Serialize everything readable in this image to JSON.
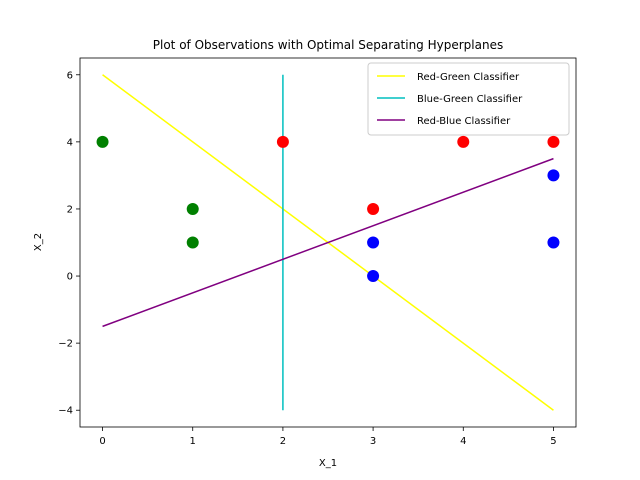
{
  "chart_data": {
    "type": "scatter",
    "title": "Plot of Observations with Optimal Separating Hyperplanes",
    "xlabel": "X_1",
    "ylabel": "X_2",
    "xlim": [
      -0.25,
      5.25
    ],
    "ylim": [
      -4.5,
      6.5
    ],
    "xticks": [
      0,
      1,
      2,
      3,
      4,
      5
    ],
    "yticks": [
      -4,
      -2,
      0,
      2,
      4,
      6
    ],
    "xtick_labels": [
      "0",
      "1",
      "2",
      "3",
      "4",
      "5"
    ],
    "ytick_labels": [
      "−4",
      "−2",
      "0",
      "2",
      "4",
      "6"
    ],
    "grid": false,
    "legend_position": "top-right",
    "points": [
      {
        "x": 0,
        "y": 4,
        "color": "#008000"
      },
      {
        "x": 1,
        "y": 2,
        "color": "#008000"
      },
      {
        "x": 1,
        "y": 1,
        "color": "#008000"
      },
      {
        "x": 2,
        "y": 4,
        "color": "#ff0000"
      },
      {
        "x": 3,
        "y": 2,
        "color": "#ff0000"
      },
      {
        "x": 4,
        "y": 4,
        "color": "#ff0000"
      },
      {
        "x": 5,
        "y": 4,
        "color": "#ff0000"
      },
      {
        "x": 3,
        "y": 1,
        "color": "#0000ff"
      },
      {
        "x": 3,
        "y": 0,
        "color": "#0000ff"
      },
      {
        "x": 5,
        "y": 3,
        "color": "#0000ff"
      },
      {
        "x": 5,
        "y": 1,
        "color": "#0000ff"
      }
    ],
    "lines": [
      {
        "name": "Red-Green Classifier",
        "color": "#ffff00",
        "x": [
          0,
          5
        ],
        "y": [
          6,
          -4
        ]
      },
      {
        "name": "Blue-Green Classifier",
        "color": "#00bfbf",
        "x": [
          2,
          2
        ],
        "y": [
          -4,
          6
        ]
      },
      {
        "name": "Red-Blue Classifier",
        "color": "#800080",
        "x": [
          0,
          5
        ],
        "y": [
          -1.5,
          3.5
        ]
      }
    ]
  }
}
